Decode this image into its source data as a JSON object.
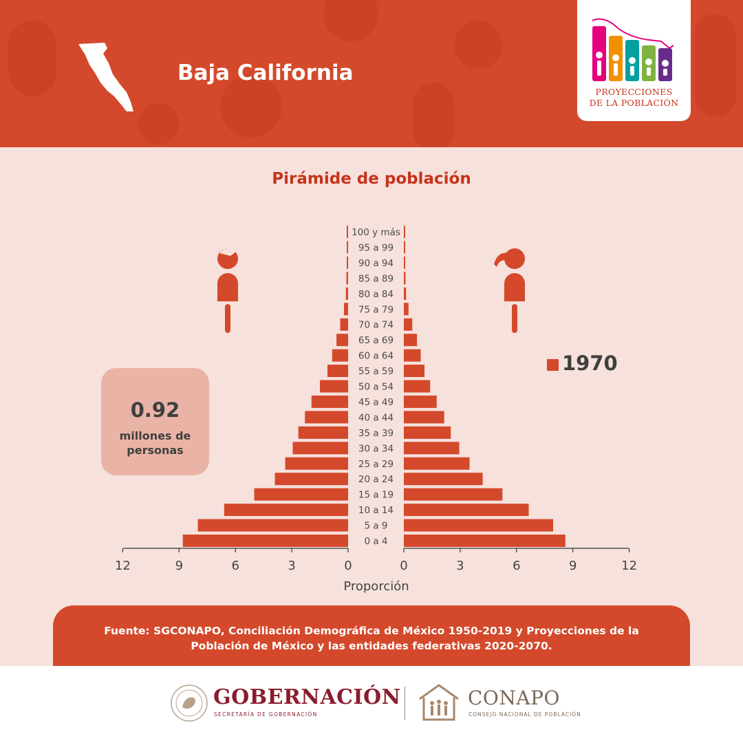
{
  "header": {
    "state_name": "Baja California",
    "logo_text_line1": "PROYECCIONES",
    "logo_text_line2": "DE LA POBLACIÓN",
    "logo_colors": [
      "#e6007e",
      "#f29100",
      "#00a0a0",
      "#7fb340",
      "#6a2c8c"
    ]
  },
  "total": {
    "value": "0.92",
    "label": "millones de personas"
  },
  "legend": {
    "label": "1970",
    "color": "#d4492b"
  },
  "chart_data": {
    "type": "bar",
    "orientation": "horizontal",
    "title": "Pirámide de población",
    "xlabel": "Proporción",
    "xlim": [
      0,
      12
    ],
    "x_ticks_left": [
      "12",
      "9",
      "6",
      "3",
      "0"
    ],
    "x_ticks_right": [
      "0",
      "3",
      "6",
      "9",
      "12"
    ],
    "bar_color": "#d4492b",
    "categories": [
      "100 y más",
      "95 a 99",
      "90 a 94",
      "85 a 89",
      "80 a 84",
      "75 a 79",
      "70 a 74",
      "65 a 69",
      "60 a 64",
      "55 a 59",
      "50 a 54",
      "45 a 49",
      "40 a 44",
      "35 a 39",
      "30 a 34",
      "25 a 29",
      "20 a 24",
      "15 a 19",
      "10 a 14",
      "5 a 9",
      "0 a 4"
    ],
    "series": [
      {
        "side": "left",
        "values": [
          0.02,
          0.04,
          0.06,
          0.09,
          0.12,
          0.22,
          0.42,
          0.62,
          0.85,
          1.1,
          1.5,
          1.95,
          2.3,
          2.65,
          2.95,
          3.35,
          3.9,
          5.0,
          6.6,
          8.0,
          8.8
        ]
      },
      {
        "side": "right",
        "values": [
          0.02,
          0.04,
          0.06,
          0.09,
          0.12,
          0.25,
          0.45,
          0.7,
          0.9,
          1.1,
          1.4,
          1.75,
          2.15,
          2.5,
          2.95,
          3.5,
          4.2,
          5.25,
          6.65,
          7.95,
          8.6
        ]
      }
    ]
  },
  "source": {
    "text": "Fuente: SGCONAPO, Conciliación Demográfica de México 1950-2019 y Proyecciones de la Población de México y las entidades federativas 2020-2070."
  },
  "footer": {
    "gob_name": "GOBERNACIÓN",
    "gob_sub": "SECRETARÍA DE GOBERNACIÓN",
    "conapo_name": "CONAPO",
    "conapo_sub": "CONSEJO NACIONAL DE POBLACIÓN"
  }
}
